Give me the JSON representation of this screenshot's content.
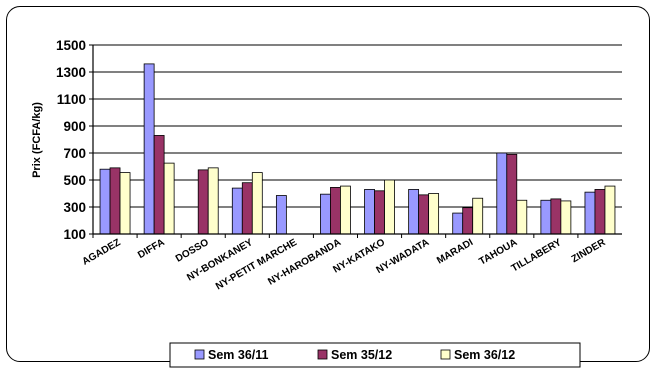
{
  "chart_data": {
    "type": "bar",
    "title": "",
    "xlabel": "",
    "ylabel": "Prix (FCFA/kg)",
    "ylim": [
      100,
      1500
    ],
    "yticks": [
      100,
      300,
      500,
      700,
      900,
      1100,
      1300,
      1500
    ],
    "grid": true,
    "legend_position": "bottom",
    "categories": [
      "AGADEZ",
      "DIFFA",
      "DOSSO",
      "NY-BONKANEY",
      "NY-PETIT MARCHE",
      "NY-HAROBANDA",
      "NY-KATAKO",
      "NY-WADATA",
      "MARADI",
      "TAHOUA",
      "TILLABERY",
      "ZINDER"
    ],
    "series": [
      {
        "name": "Sem 36/11",
        "color": "#9999ff",
        "values": [
          580,
          1360,
          null,
          440,
          385,
          395,
          430,
          430,
          255,
          700,
          350,
          410
        ]
      },
      {
        "name": "Sem 35/12",
        "color": "#993366",
        "values": [
          590,
          830,
          575,
          480,
          null,
          445,
          420,
          390,
          295,
          690,
          360,
          430
        ]
      },
      {
        "name": "Sem 36/12",
        "color": "#ffffcc",
        "values": [
          555,
          625,
          590,
          555,
          null,
          455,
          500,
          400,
          365,
          350,
          345,
          455
        ]
      }
    ]
  }
}
